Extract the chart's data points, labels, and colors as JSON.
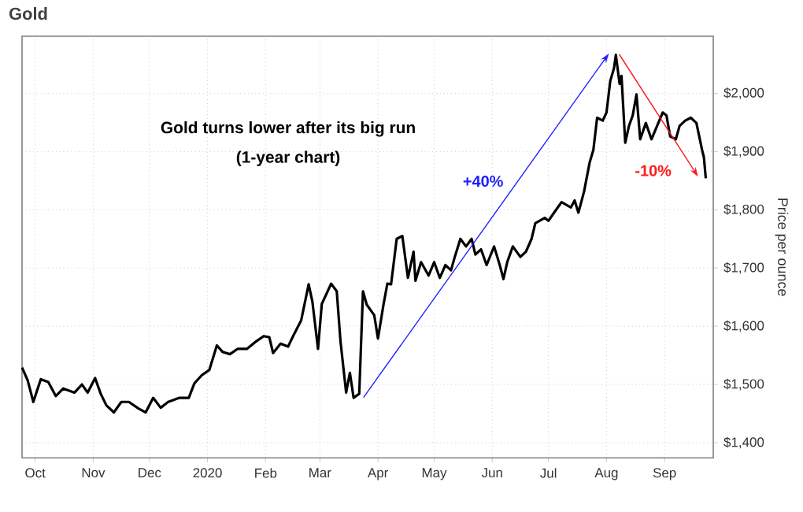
{
  "chart_data": {
    "type": "line",
    "title": "Gold",
    "ylabel": "Price per ounce",
    "annotations": [
      "Gold turns lower after its big run",
      "(1-year chart)",
      "+40%",
      "-10%"
    ],
    "xlim": [
      "2019-09-24",
      "2020-09-27"
    ],
    "ylim": [
      1374,
      2098
    ],
    "xticks": [
      {
        "value": "2019-10-01",
        "label": "Oct"
      },
      {
        "value": "2019-11-01",
        "label": "Nov"
      },
      {
        "value": "2019-12-01",
        "label": "Dec"
      },
      {
        "value": "2020-01-01",
        "label": "2020"
      },
      {
        "value": "2020-02-01",
        "label": "Feb"
      },
      {
        "value": "2020-03-01",
        "label": "Mar"
      },
      {
        "value": "2020-04-01",
        "label": "Apr"
      },
      {
        "value": "2020-05-01",
        "label": "May"
      },
      {
        "value": "2020-06-01",
        "label": "Jun"
      },
      {
        "value": "2020-07-01",
        "label": "Jul"
      },
      {
        "value": "2020-08-01",
        "label": "Aug"
      },
      {
        "value": "2020-09-01",
        "label": "Sep"
      }
    ],
    "yticks": [
      {
        "value": 1400,
        "label": "$1,400"
      },
      {
        "value": 1500,
        "label": "$1,500"
      },
      {
        "value": 1600,
        "label": "$1,600"
      },
      {
        "value": 1700,
        "label": "$1,700"
      },
      {
        "value": 1800,
        "label": "$1,800"
      },
      {
        "value": 1900,
        "label": "$1,900"
      },
      {
        "value": 2000,
        "label": "$2,000"
      }
    ],
    "grid": true,
    "x": [
      "2019-09-24",
      "2019-09-27",
      "2019-09-30",
      "2019-10-04",
      "2019-10-08",
      "2019-10-12",
      "2019-10-16",
      "2019-10-22",
      "2019-10-26",
      "2019-10-29",
      "2019-11-02",
      "2019-11-05",
      "2019-11-08",
      "2019-11-12",
      "2019-11-16",
      "2019-11-20",
      "2019-11-25",
      "2019-11-29",
      "2019-12-03",
      "2019-12-07",
      "2019-12-11",
      "2019-12-17",
      "2019-12-22",
      "2019-12-25",
      "2019-12-29",
      "2020-01-02",
      "2020-01-06",
      "2020-01-09",
      "2020-01-13",
      "2020-01-17",
      "2020-01-22",
      "2020-01-27",
      "2020-01-31",
      "2020-02-03",
      "2020-02-05",
      "2020-02-09",
      "2020-02-13",
      "2020-02-16",
      "2020-02-20",
      "2020-02-24",
      "2020-02-26",
      "2020-02-29",
      "2020-03-02",
      "2020-03-07",
      "2020-03-10",
      "2020-03-12",
      "2020-03-15",
      "2020-03-17",
      "2020-03-19",
      "2020-03-22",
      "2020-03-24",
      "2020-03-26",
      "2020-03-30",
      "2020-04-01",
      "2020-04-04",
      "2020-04-06",
      "2020-04-08",
      "2020-04-11",
      "2020-04-14",
      "2020-04-17",
      "2020-04-20",
      "2020-04-21",
      "2020-04-24",
      "2020-04-28",
      "2020-05-01",
      "2020-05-04",
      "2020-05-07",
      "2020-05-10",
      "2020-05-12",
      "2020-05-15",
      "2020-05-18",
      "2020-05-21",
      "2020-05-23",
      "2020-05-26",
      "2020-05-29",
      "2020-06-02",
      "2020-06-05",
      "2020-06-07",
      "2020-06-09",
      "2020-06-12",
      "2020-06-16",
      "2020-06-19",
      "2020-06-22",
      "2020-06-24",
      "2020-06-29",
      "2020-07-01",
      "2020-07-04",
      "2020-07-08",
      "2020-07-13",
      "2020-07-15",
      "2020-07-17",
      "2020-07-20",
      "2020-07-23",
      "2020-07-25",
      "2020-07-27",
      "2020-07-30",
      "2020-08-01",
      "2020-08-03",
      "2020-08-05",
      "2020-08-06",
      "2020-08-08",
      "2020-08-09",
      "2020-08-11",
      "2020-08-13",
      "2020-08-15",
      "2020-08-17",
      "2020-08-19",
      "2020-08-22",
      "2020-08-25",
      "2020-08-28",
      "2020-08-31",
      "2020-09-02",
      "2020-09-04",
      "2020-09-07",
      "2020-09-09",
      "2020-09-12",
      "2020-09-15",
      "2020-09-18",
      "2020-09-21",
      "2020-09-22",
      "2020-09-23"
    ],
    "series": [
      {
        "color": "#000000",
        "values": [
          1529,
          1507,
          1470,
          1509,
          1504,
          1480,
          1493,
          1486,
          1500,
          1486,
          1511,
          1484,
          1464,
          1452,
          1470,
          1470,
          1459,
          1452,
          1477,
          1460,
          1470,
          1477,
          1477,
          1502,
          1516,
          1525,
          1567,
          1556,
          1552,
          1561,
          1561,
          1574,
          1583,
          1581,
          1554,
          1570,
          1565,
          1585,
          1610,
          1672,
          1642,
          1561,
          1638,
          1673,
          1660,
          1574,
          1486,
          1520,
          1477,
          1484,
          1660,
          1637,
          1619,
          1579,
          1638,
          1673,
          1672,
          1750,
          1755,
          1683,
          1728,
          1678,
          1710,
          1687,
          1710,
          1683,
          1705,
          1696,
          1719,
          1750,
          1737,
          1750,
          1723,
          1732,
          1705,
          1737,
          1705,
          1681,
          1710,
          1737,
          1719,
          1728,
          1750,
          1777,
          1786,
          1781,
          1795,
          1813,
          1804,
          1816,
          1795,
          1831,
          1881,
          1903,
          1958,
          1953,
          1967,
          2021,
          2043,
          2066,
          2016,
          2030,
          1915,
          1944,
          1962,
          1998,
          1921,
          1949,
          1921,
          1944,
          1967,
          1962,
          1926,
          1921,
          1944,
          1953,
          1958,
          1949,
          1903,
          1890,
          1854
        ]
      }
    ]
  }
}
